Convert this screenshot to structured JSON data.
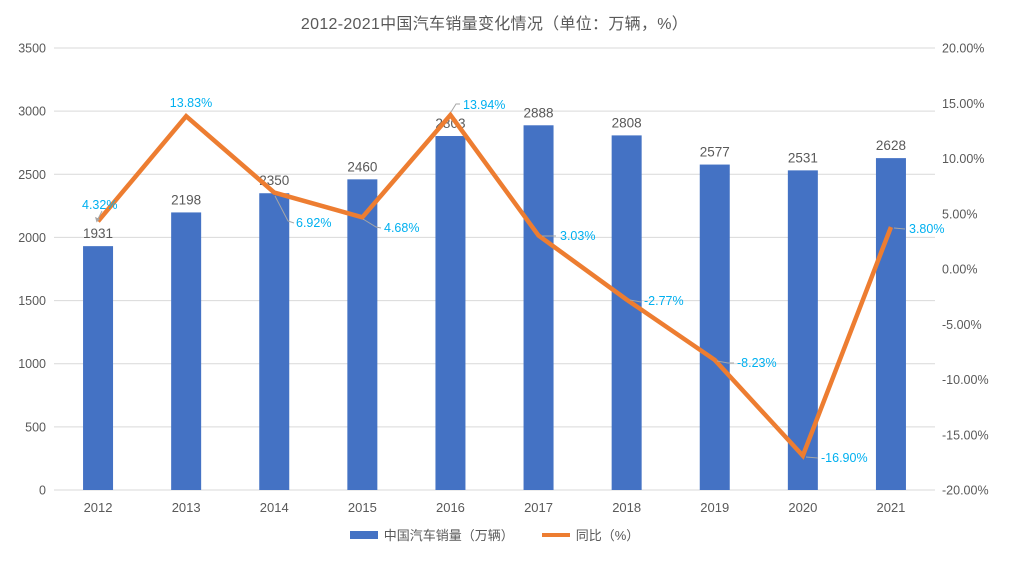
{
  "title": "2012-2021中国汽车销量变化情况（单位：万辆，%）",
  "colors": {
    "bar": "#4472C4",
    "line": "#ED7D31",
    "yoy_label": "#00B0F0",
    "text": "#595959",
    "grid": "#D9D9D9",
    "leader": "#A6A6A6",
    "background": "#FFFFFF"
  },
  "chart_data": {
    "type": "combo-bar-line",
    "title": "2012-2021中国汽车销量变化情况（单位：万辆，%）",
    "categories": [
      "2012",
      "2013",
      "2014",
      "2015",
      "2016",
      "2017",
      "2018",
      "2019",
      "2020",
      "2021"
    ],
    "series": [
      {
        "name": "中国汽车销量（万辆）",
        "type": "bar",
        "axis": "left",
        "values": [
          1931,
          2198,
          2350,
          2460,
          2803,
          2888,
          2808,
          2577,
          2531,
          2628
        ],
        "labels": [
          "1931",
          "2198",
          "2350",
          "2460",
          "2803",
          "2888",
          "2808",
          "2577",
          "2531",
          "2628"
        ]
      },
      {
        "name": "同比（%）",
        "type": "line",
        "axis": "right",
        "values": [
          4.32,
          13.83,
          6.92,
          4.68,
          13.94,
          3.03,
          -2.77,
          -8.23,
          -16.9,
          3.8
        ],
        "labels": [
          "4.32%",
          "13.83%",
          "6.92%",
          "4.68%",
          "13.94%",
          "3.03%",
          "-2.77%",
          "-8.23%",
          "-16.90%",
          "3.80%"
        ]
      }
    ],
    "left_axis": {
      "min": 0,
      "max": 3500,
      "step": 500,
      "tick_labels": [
        "3500",
        "3000",
        "2500",
        "2000",
        "1500",
        "1000",
        "500",
        "0"
      ]
    },
    "right_axis": {
      "min": -20,
      "max": 20,
      "step": 5,
      "tick_labels": [
        "20.00%",
        "15.00%",
        "10.00%",
        "5.00%",
        "0.00%",
        "-5.00%",
        "-10.00%",
        "-15.00%",
        "-20.00%"
      ]
    },
    "legend": [
      "中国汽车销量（万辆）",
      "同比（%）"
    ],
    "legend_position": "bottom",
    "grid": true
  }
}
